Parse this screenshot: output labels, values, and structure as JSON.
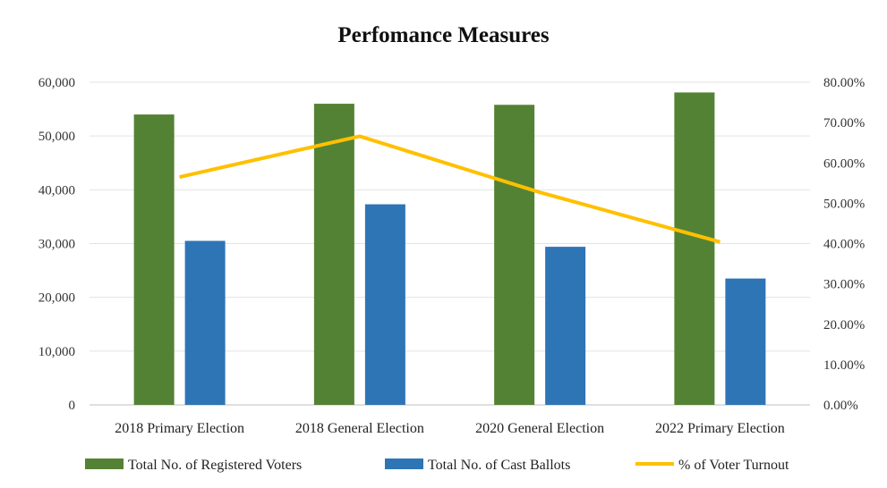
{
  "chart_data": {
    "type": "bar",
    "title": "Perfomance Measures",
    "categories": [
      "2018 Primary Election",
      "2018 General Election",
      "2020 General Election",
      "2022 Primary Election"
    ],
    "series": [
      {
        "name": "Total No. of Registered Voters",
        "type": "bar",
        "axis": "left",
        "color": "#548235",
        "values": [
          54000,
          56000,
          55800,
          58100
        ]
      },
      {
        "name": "Total No. of Cast Ballots",
        "type": "bar",
        "axis": "left",
        "color": "#2E75B6",
        "values": [
          30500,
          37300,
          29400,
          23500
        ]
      },
      {
        "name": "% of Voter Turnout",
        "type": "line",
        "axis": "right",
        "color": "#FFC000",
        "values": [
          56.5,
          66.6,
          52.7,
          40.4
        ]
      }
    ],
    "y_left": {
      "min": 0,
      "max": 60000,
      "ticks": [
        "0",
        "10,000",
        "20,000",
        "30,000",
        "40,000",
        "50,000",
        "60,000"
      ]
    },
    "y_right": {
      "min": 0,
      "max": 80,
      "ticks": [
        "0.00%",
        "10.00%",
        "20.00%",
        "30.00%",
        "40.00%",
        "50.00%",
        "60.00%",
        "70.00%",
        "80.00%"
      ]
    },
    "grid": true,
    "legend_position": "bottom"
  }
}
